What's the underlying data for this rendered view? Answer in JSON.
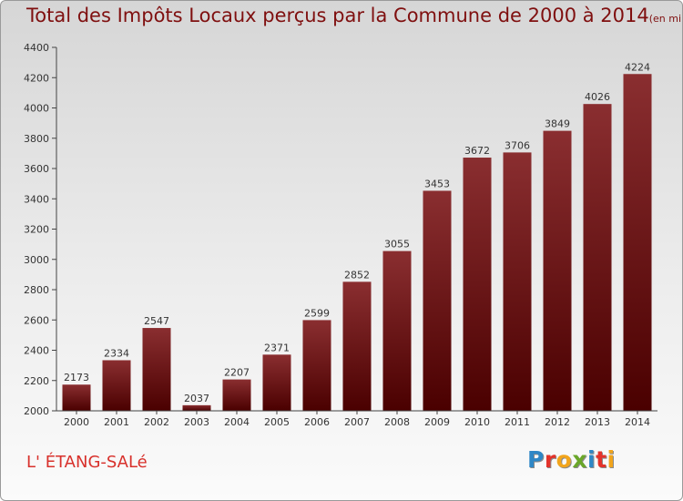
{
  "title": "Total des Impôts Locaux perçus par la Commune de 2000 à 2014",
  "unit_note": "(en milliers d'€)",
  "commune_name": "L' ÉTANG-SALé",
  "logo": {
    "text": "Proxiti",
    "letter_colors": [
      "#2f87c6",
      "#e3332b",
      "#f2a51c",
      "#6aa72a",
      "#2f87c6",
      "#e3332b",
      "#f2a51c"
    ]
  },
  "colors": {
    "bar_top": "#8a2e30",
    "bar_bottom": "#4a0000",
    "text": "#7f0f0f",
    "commune": "#d8312c"
  },
  "chart_data": {
    "type": "bar",
    "title": "Total des Impôts Locaux perçus par la Commune de 2000 à 2014",
    "xlabel": "",
    "ylabel": "",
    "categories": [
      "2000",
      "2001",
      "2002",
      "2003",
      "2004",
      "2005",
      "2006",
      "2007",
      "2008",
      "2009",
      "2010",
      "2011",
      "2012",
      "2013",
      "2014"
    ],
    "values": [
      2173,
      2334,
      2547,
      2037,
      2207,
      2371,
      2599,
      2852,
      3055,
      3453,
      3672,
      3706,
      3849,
      4026,
      4224
    ],
    "ylim": [
      2000,
      4400
    ],
    "yticks": [
      2000,
      2200,
      2400,
      2600,
      2800,
      3000,
      3200,
      3400,
      3600,
      3800,
      4000,
      4200,
      4400
    ],
    "grid": false,
    "legend": "none"
  }
}
